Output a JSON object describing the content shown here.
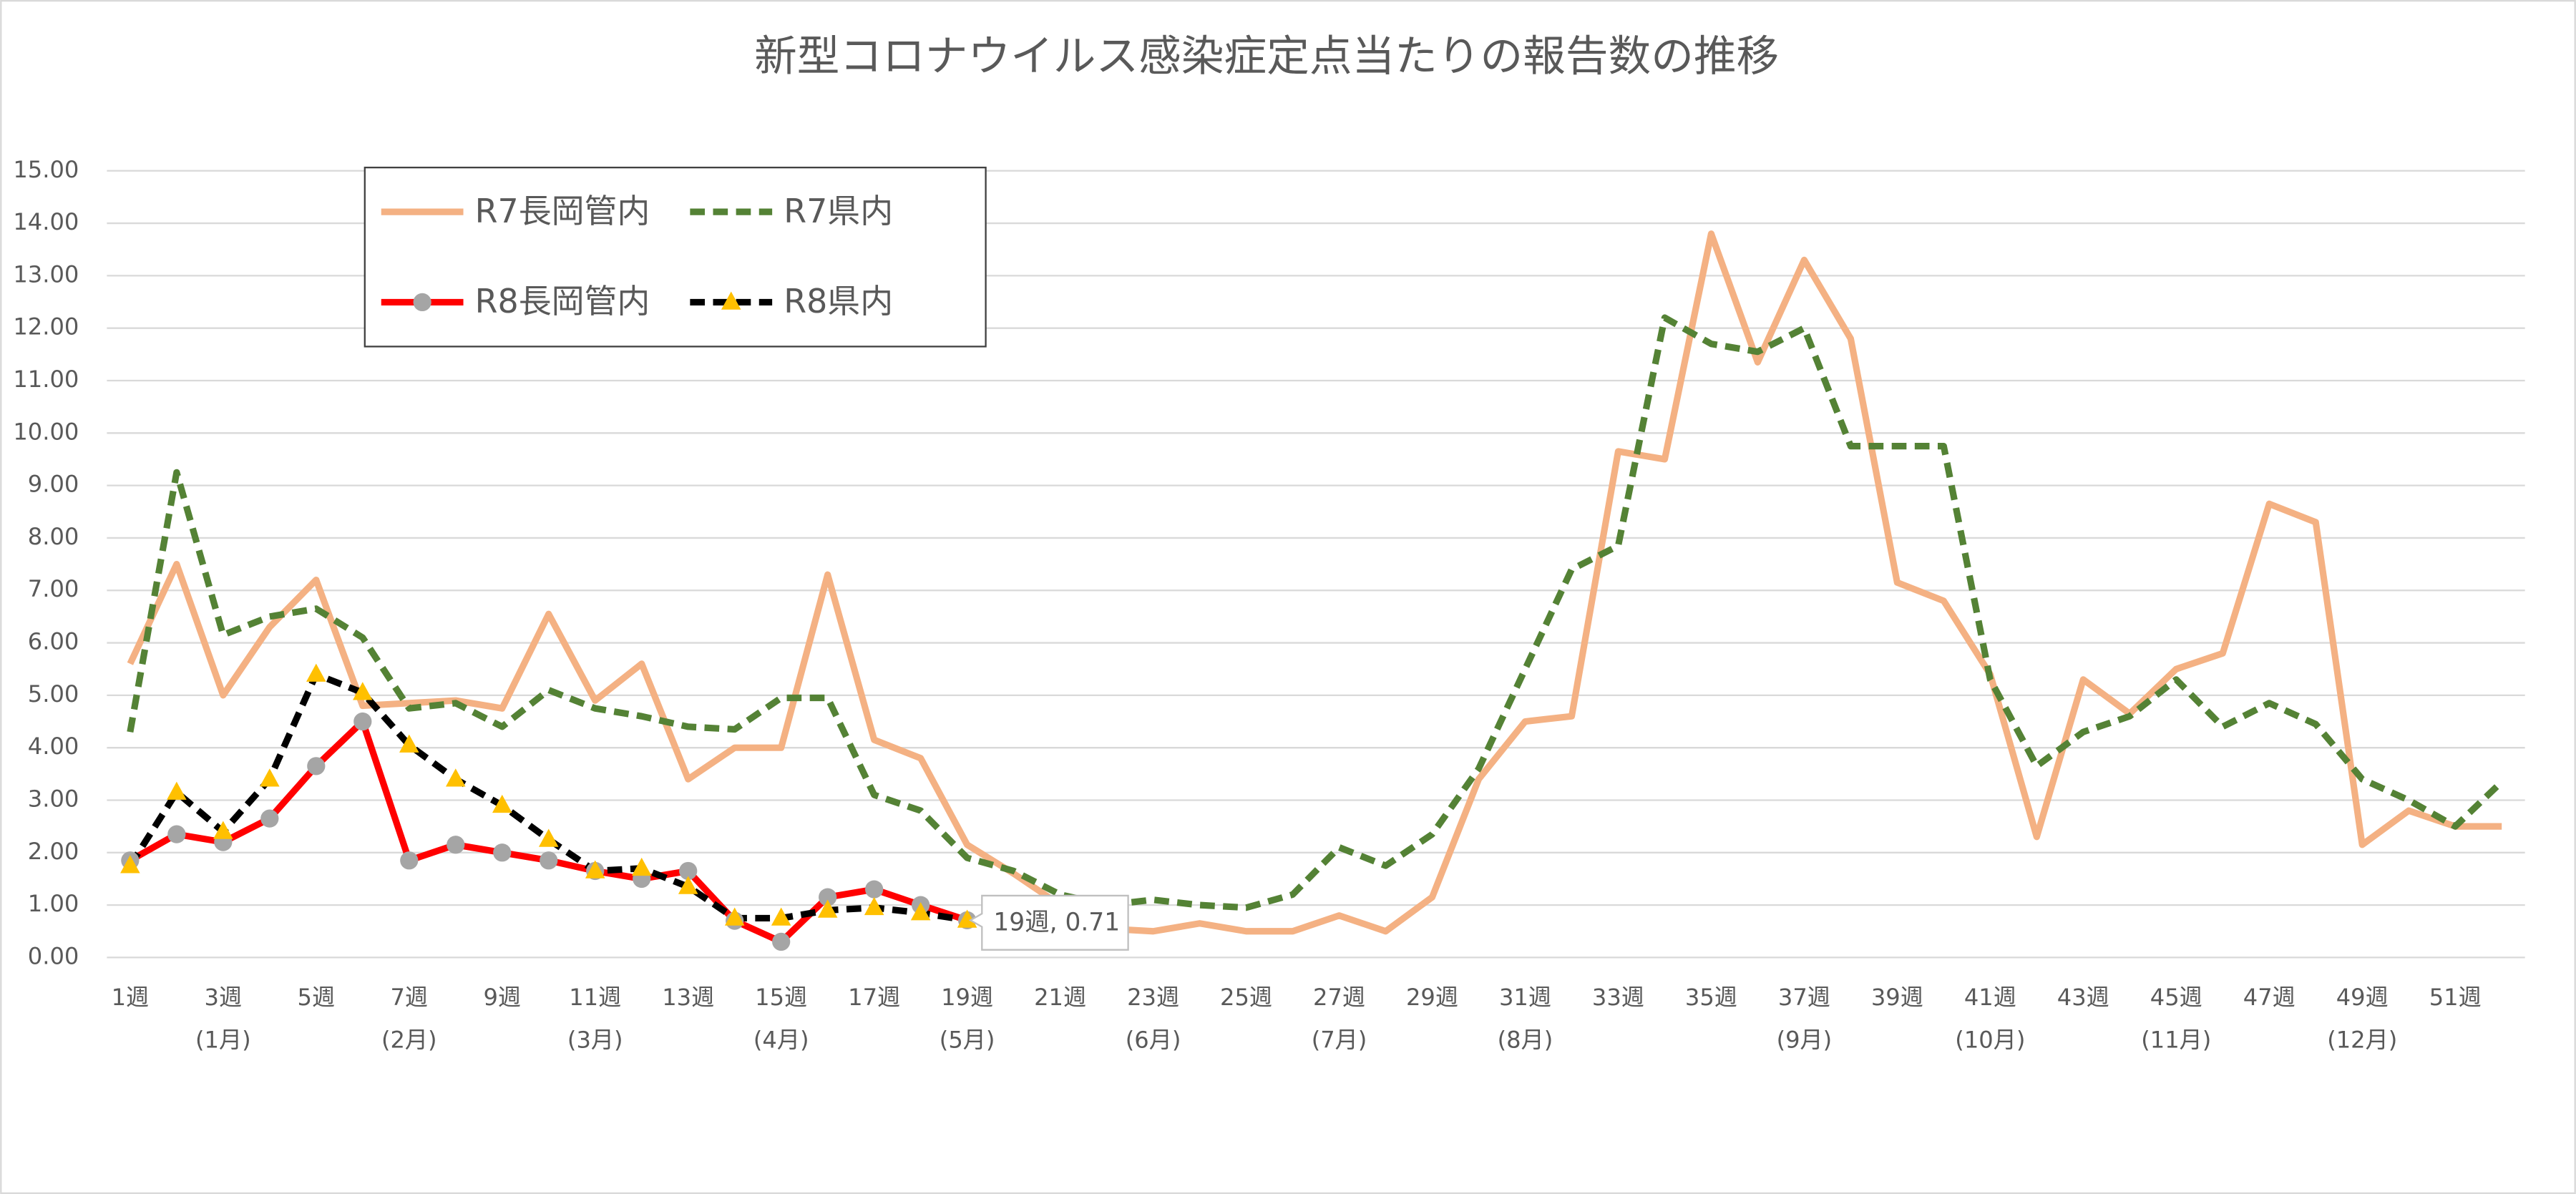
{
  "chart_data": {
    "type": "line",
    "title": "新型コロナウイルス感染症定点当たりの報告数の推移",
    "categories": [
      "1週",
      null,
      "3週",
      null,
      "5週",
      null,
      "7週",
      null,
      "9週",
      null,
      "11週",
      null,
      "13週",
      null,
      "15週",
      null,
      "17週",
      null,
      "19週",
      null,
      "21週",
      null,
      "23週",
      null,
      "25週",
      null,
      "27週",
      null,
      "29週",
      null,
      "31週",
      null,
      "33週",
      null,
      "35週",
      null,
      "37週",
      null,
      "39週",
      null,
      "41週",
      null,
      "43週",
      null,
      "45週",
      null,
      "47週",
      null,
      "49週",
      null,
      "51週",
      null
    ],
    "categories2": [
      null,
      null,
      "(1月)",
      null,
      null,
      null,
      "(2月)",
      null,
      null,
      null,
      "(3月)",
      null,
      null,
      null,
      "(4月)",
      null,
      null,
      null,
      "(5月)",
      null,
      null,
      null,
      "(6月)",
      null,
      null,
      null,
      "(7月)",
      null,
      null,
      null,
      "(8月)",
      null,
      null,
      null,
      null,
      null,
      "(9月)",
      null,
      null,
      null,
      "(10月)",
      null,
      null,
      null,
      "(11月)",
      null,
      null,
      null,
      "(12月)",
      null,
      null,
      null
    ],
    "series": [
      {
        "name": "R7長岡管内",
        "color": "#f4b183",
        "dash": false,
        "marker": null,
        "values": [
          5.6,
          7.5,
          5.0,
          6.3,
          7.2,
          4.8,
          4.85,
          4.9,
          4.75,
          6.55,
          4.9,
          5.6,
          3.4,
          4.0,
          4.0,
          7.3,
          4.15,
          3.8,
          2.15,
          1.6,
          1.0,
          0.55,
          0.5,
          0.65,
          0.5,
          0.5,
          0.8,
          0.5,
          1.15,
          3.4,
          4.5,
          4.6,
          9.65,
          9.5,
          13.8,
          11.35,
          13.3,
          11.8,
          7.15,
          6.8,
          5.4,
          2.3,
          5.3,
          4.65,
          5.5,
          5.8,
          8.65,
          8.3,
          2.15,
          2.8,
          2.5,
          2.5
        ]
      },
      {
        "name": "R7県内",
        "color": "#548235",
        "dash": true,
        "marker": null,
        "values": [
          4.3,
          9.25,
          6.15,
          6.5,
          6.65,
          6.1,
          4.75,
          4.85,
          4.4,
          5.1,
          4.75,
          4.6,
          4.4,
          4.35,
          4.95,
          4.95,
          3.1,
          2.8,
          1.9,
          1.65,
          1.2,
          1.0,
          1.1,
          1.0,
          0.95,
          1.2,
          2.1,
          1.75,
          2.35,
          3.6,
          5.5,
          7.4,
          7.85,
          12.2,
          11.7,
          11.55,
          12.0,
          9.75,
          9.75,
          9.75,
          5.3,
          3.65,
          4.3,
          4.6,
          5.3,
          4.4,
          4.85,
          4.45,
          3.4,
          3.0,
          2.5,
          3.35
        ]
      },
      {
        "name": "R8長岡管内",
        "color": "#ff0000",
        "dash": false,
        "marker": "circle",
        "marker_color": "#a5a5a5",
        "values": [
          1.85,
          2.35,
          2.2,
          2.65,
          3.65,
          4.5,
          1.85,
          2.15,
          2.0,
          1.85,
          1.65,
          1.5,
          1.65,
          0.7,
          0.3,
          1.15,
          1.3,
          1.0,
          0.71,
          null,
          null,
          null,
          null,
          null,
          null,
          null,
          null,
          null,
          null,
          null,
          null,
          null,
          null,
          null,
          null,
          null,
          null,
          null,
          null,
          null,
          null,
          null,
          null,
          null,
          null,
          null,
          null,
          null,
          null,
          null,
          null,
          null
        ]
      },
      {
        "name": "R8県内",
        "color": "#000000",
        "dash": true,
        "marker": "triangle",
        "marker_color": "#ffc000",
        "values": [
          1.75,
          3.15,
          2.4,
          3.4,
          5.4,
          5.05,
          4.05,
          3.4,
          2.9,
          2.25,
          1.65,
          1.7,
          1.35,
          0.75,
          0.75,
          0.9,
          0.95,
          0.85,
          0.71,
          null,
          null,
          null,
          null,
          null,
          null,
          null,
          null,
          null,
          null,
          null,
          null,
          null,
          null,
          null,
          null,
          null,
          null,
          null,
          null,
          null,
          null,
          null,
          null,
          null,
          null,
          null,
          null,
          null,
          null,
          null,
          null,
          null
        ],
        "value_labels": [
          null,
          null,
          null,
          null,
          null,
          null,
          null,
          null,
          null,
          null,
          null,
          null,
          null,
          null,
          null,
          null,
          null,
          null,
          "19週, 0.71",
          null,
          null,
          null,
          null,
          null,
          null,
          null,
          null,
          null,
          null,
          null,
          null,
          null,
          null,
          null,
          null,
          null,
          null,
          null,
          null,
          null,
          null,
          null,
          null,
          null,
          null,
          null,
          null,
          null,
          null,
          null,
          null,
          null
        ]
      }
    ],
    "ylim": [
      0,
      15
    ],
    "yticks": [
      {
        "value": 0,
        "label": "0.00"
      },
      {
        "value": 1,
        "label": "1.00"
      },
      {
        "value": 2,
        "label": "2.00"
      },
      {
        "value": 3,
        "label": "3.00"
      },
      {
        "value": 4,
        "label": "4.00"
      },
      {
        "value": 5,
        "label": "5.00"
      },
      {
        "value": 6,
        "label": "6.00"
      },
      {
        "value": 7,
        "label": "7.00"
      },
      {
        "value": 8,
        "label": "8.00"
      },
      {
        "value": 9,
        "label": "9.00"
      },
      {
        "value": 10,
        "label": "10.00"
      },
      {
        "value": 11,
        "label": "11.00"
      },
      {
        "value": 12,
        "label": "12.00"
      },
      {
        "value": 13,
        "label": "13.00"
      },
      {
        "value": 14,
        "label": "14.00"
      },
      {
        "value": 15,
        "label": "15.00"
      }
    ],
    "grid": true,
    "legend": "upper left"
  }
}
